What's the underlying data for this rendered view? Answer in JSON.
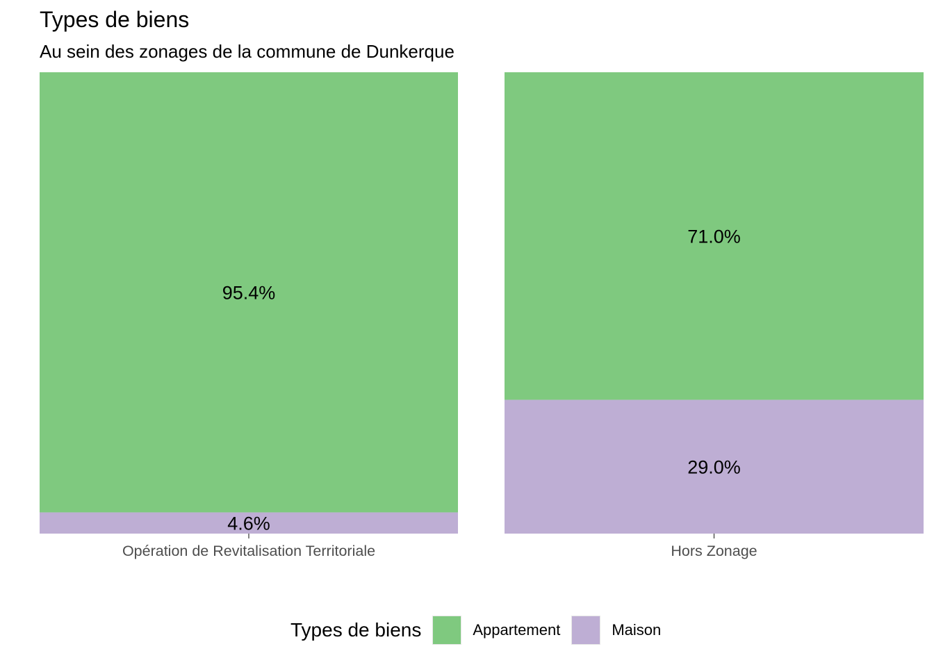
{
  "chart_data": {
    "type": "bar",
    "stacked": true,
    "normalized": true,
    "title": "Types de biens",
    "subtitle": "Au sein des zonages de la commune de Dunkerque",
    "xlabel": "",
    "ylabel": "",
    "ylim": [
      0,
      1
    ],
    "grid": false,
    "categories": [
      "Opération de Revitalisation Territoriale",
      "Hors Zonage"
    ],
    "series": [
      {
        "name": "Appartement",
        "color": "#7fc97f",
        "values": [
          0.954,
          0.71
        ],
        "labels": [
          "95.4%",
          "71.0%"
        ]
      },
      {
        "name": "Maison",
        "color": "#beaed4",
        "values": [
          0.046,
          0.29
        ],
        "labels": [
          "4.6%",
          "29.0%"
        ]
      }
    ],
    "legend": {
      "title": "Types de biens",
      "position": "bottom"
    }
  }
}
